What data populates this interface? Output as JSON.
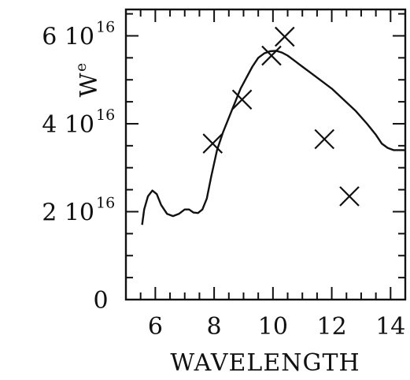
{
  "chart_data": {
    "type": "line",
    "title": "",
    "xlabel": "WAVELENGTH",
    "ylabel": "W",
    "ylabel_superscript": "e",
    "xlim": [
      5,
      14.5
    ],
    "ylim": [
      0,
      6.6
    ],
    "x_ticks": [
      {
        "value": 6,
        "label": "6"
      },
      {
        "value": 8,
        "label": "8"
      },
      {
        "value": 10,
        "label": "10"
      },
      {
        "value": 12,
        "label": "12"
      },
      {
        "value": 14,
        "label": "14"
      }
    ],
    "y_ticks": [
      {
        "value": 0,
        "label": "0",
        "sup": ""
      },
      {
        "value": 2,
        "label": "2 10",
        "sup": "16"
      },
      {
        "value": 4,
        "label": "4 10",
        "sup": "16"
      },
      {
        "value": 6,
        "label": "6 10",
        "sup": "16"
      }
    ],
    "grid": false,
    "series": [
      {
        "style": "line",
        "x": [
          5.55,
          5.62,
          5.75,
          5.9,
          6.05,
          6.2,
          6.4,
          6.6,
          6.8,
          7.0,
          7.15,
          7.3,
          7.45,
          7.6,
          7.75,
          7.9,
          8.1,
          8.3,
          8.6,
          8.9,
          9.1,
          9.3,
          9.5,
          9.7,
          9.9,
          10.1,
          10.3,
          10.5,
          10.7,
          11.0,
          11.3,
          11.6,
          12.0,
          12.4,
          12.8,
          13.2,
          13.5,
          13.7,
          13.9,
          14.1,
          14.3,
          14.5
        ],
        "y": [
          1.7,
          2.05,
          2.35,
          2.48,
          2.4,
          2.15,
          1.95,
          1.9,
          1.95,
          2.05,
          2.05,
          1.98,
          1.97,
          2.05,
          2.3,
          2.8,
          3.4,
          3.8,
          4.3,
          4.8,
          5.05,
          5.3,
          5.5,
          5.6,
          5.65,
          5.66,
          5.62,
          5.55,
          5.45,
          5.3,
          5.15,
          5.0,
          4.8,
          4.55,
          4.3,
          4.0,
          3.75,
          3.55,
          3.45,
          3.4,
          3.4,
          3.4
        ]
      },
      {
        "style": "markers",
        "marker": "x",
        "x": [
          7.95,
          8.95,
          9.95,
          10.4,
          11.75,
          12.6
        ],
        "y": [
          3.55,
          4.55,
          5.55,
          5.98,
          3.65,
          2.35
        ]
      }
    ]
  }
}
